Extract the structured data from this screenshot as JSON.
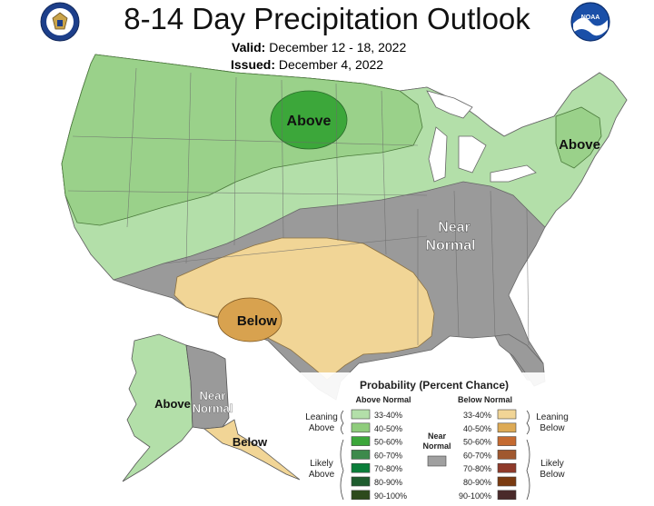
{
  "header": {
    "title": "8-14 Day Precipitation Outlook",
    "valid_label": "Valid:",
    "valid_value": "December 12 - 18, 2022",
    "issued_label": "Issued:",
    "issued_value": "December 4, 2022"
  },
  "logos": {
    "left": "department-of-commerce-seal",
    "right": "noaa-logo",
    "noaa_text": "NOAA"
  },
  "map_labels": {
    "above_north": "Above",
    "above_northeast": "Above",
    "near_normal_1": "Near",
    "near_normal_2": "Normal",
    "below_texas": "Below",
    "alaska_above": "Above",
    "alaska_near_1": "Near",
    "alaska_near_2": "Normal",
    "alaska_below": "Below"
  },
  "legend": {
    "title": "Probability (Percent Chance)",
    "above_header": "Above Normal",
    "below_header": "Below Normal",
    "leaning_above_1": "Leaning",
    "leaning_above_2": "Above",
    "likely_above_1": "Likely",
    "likely_above_2": "Above",
    "leaning_below_1": "Leaning",
    "leaning_below_2": "Below",
    "likely_below_1": "Likely",
    "likely_below_2": "Below",
    "near_normal_1": "Near",
    "near_normal_2": "Normal",
    "ranges": [
      "33-40%",
      "40-50%",
      "50-60%",
      "60-70%",
      "70-80%",
      "80-90%",
      "90-100%"
    ],
    "above_colors": [
      "#b3dfa9",
      "#8fcc7c",
      "#3ca73a",
      "#3d8a4c",
      "#0a7e3a",
      "#1e5c2e",
      "#2d4a1c"
    ],
    "below_colors": [
      "#f1d596",
      "#ddaa55",
      "#c56a30",
      "#a0582f",
      "#8f3a2a",
      "#7a3a10",
      "#4a2a2a"
    ],
    "near_color": "#a0a0a0"
  },
  "colors": {
    "above_light": "#b3dfa9",
    "above_mid": "#9ad18a",
    "above_strong": "#3ca73a",
    "near_normal": "#9a9a9a",
    "below_light": "#f1d596",
    "below_mid": "#d8a24f"
  }
}
